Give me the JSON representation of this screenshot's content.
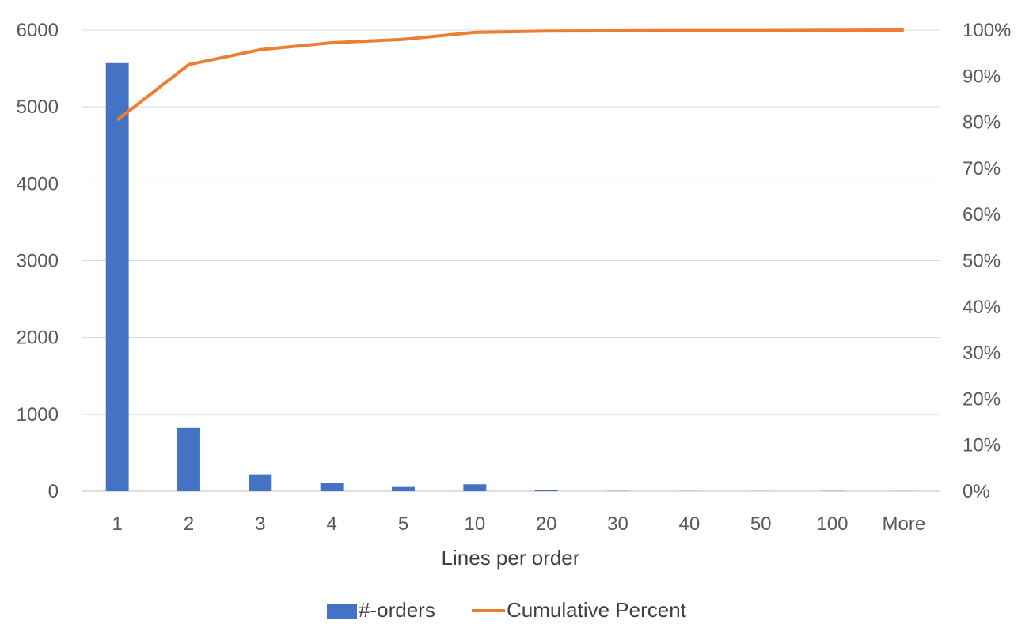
{
  "chart_data": {
    "type": "bar",
    "categories": [
      "1",
      "2",
      "3",
      "4",
      "5",
      "10",
      "20",
      "30",
      "40",
      "50",
      "100",
      "More"
    ],
    "series": [
      {
        "name": "#-orders",
        "type": "bar",
        "axis": "left",
        "color": "#4472C4",
        "values": [
          5570,
          825,
          220,
          105,
          55,
          90,
          20,
          3,
          2,
          1,
          3,
          2
        ]
      },
      {
        "name": "Cumulative Percent",
        "type": "line",
        "axis": "right",
        "color": "#ED7D31",
        "values": [
          0.805,
          0.925,
          0.9575,
          0.9725,
          0.98,
          0.995,
          0.998,
          0.9985,
          0.999,
          0.999,
          0.9995,
          1.0
        ]
      }
    ],
    "xlabel": "Lines per order",
    "ylim": [
      0,
      6000
    ],
    "y2lim": [
      0,
      1
    ],
    "yticks": [
      "0",
      "1000",
      "2000",
      "3000",
      "4000",
      "5000",
      "6000"
    ],
    "y2ticks": [
      "0%",
      "10%",
      "20%",
      "30%",
      "40%",
      "50%",
      "60%",
      "70%",
      "80%",
      "90%",
      "100%"
    ],
    "grid": true,
    "legend": "bottom"
  }
}
